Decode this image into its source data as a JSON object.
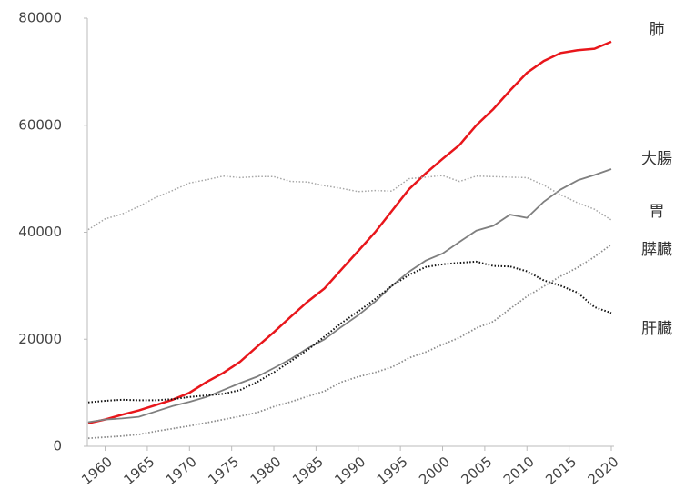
{
  "chart_data": {
    "type": "line",
    "x": [
      1958,
      1960,
      1962,
      1964,
      1966,
      1968,
      1970,
      1972,
      1974,
      1976,
      1978,
      1980,
      1982,
      1984,
      1986,
      1988,
      1990,
      1992,
      1994,
      1996,
      1998,
      2000,
      2002,
      2004,
      2006,
      2008,
      2010,
      2012,
      2014,
      2016,
      2018,
      2020
    ],
    "series": [
      {
        "name": "肺",
        "color": "#e8161b",
        "style": "solid",
        "width": 2.5,
        "values": [
          4300,
          5000,
          5900,
          6700,
          7700,
          8700,
          10000,
          12000,
          13700,
          15800,
          18600,
          21300,
          24200,
          27000,
          29500,
          33000,
          36500,
          40000,
          44000,
          48000,
          51000,
          53700,
          56300,
          60000,
          63000,
          66500,
          69800,
          72000,
          73500,
          74000,
          74300,
          75600
        ]
      },
      {
        "name": "大腸",
        "color": "#7f7f7f",
        "style": "solid",
        "width": 1.8,
        "values": [
          4500,
          5000,
          5200,
          5500,
          6500,
          7500,
          8300,
          9200,
          10500,
          11800,
          13000,
          14600,
          16300,
          18300,
          20000,
          22300,
          24500,
          27000,
          30000,
          32600,
          34700,
          36000,
          38200,
          40300,
          41200,
          43300,
          42700,
          45700,
          48000,
          49700,
          50700,
          51800
        ]
      },
      {
        "name": "胃",
        "color": "#a6a6a6",
        "style": "dotted",
        "width": 1.5,
        "values": [
          40500,
          42500,
          43400,
          44800,
          46500,
          47800,
          49200,
          49800,
          50500,
          50200,
          50400,
          50400,
          49500,
          49400,
          48700,
          48200,
          47600,
          47800,
          47700,
          50000,
          50300,
          50600,
          49500,
          50500,
          50400,
          50300,
          50200,
          48800,
          47000,
          45500,
          44300,
          42300
        ]
      },
      {
        "name": "膵臓",
        "color": "#8c8c8c",
        "style": "dotted",
        "width": 1.8,
        "values": [
          1500,
          1700,
          1900,
          2200,
          2800,
          3300,
          3800,
          4400,
          5000,
          5600,
          6300,
          7400,
          8300,
          9300,
          10300,
          12000,
          13000,
          13800,
          14800,
          16500,
          17600,
          19000,
          20300,
          22100,
          23300,
          25700,
          28000,
          29900,
          31800,
          33400,
          35400,
          37700
        ]
      },
      {
        "name": "肝臓",
        "color": "#111111",
        "style": "dotted",
        "width": 2,
        "values": [
          8200,
          8500,
          8700,
          8600,
          8600,
          8800,
          9200,
          9500,
          9800,
          10500,
          12000,
          13800,
          15900,
          18000,
          20500,
          23000,
          25200,
          27500,
          30000,
          32000,
          33500,
          34000,
          34300,
          34500,
          33700,
          33600,
          32700,
          31000,
          30000,
          28700,
          26000,
          24900
        ]
      }
    ],
    "xlim": [
      1958,
      2020
    ],
    "ylim": [
      0,
      80000
    ],
    "xticks": [
      1960,
      1965,
      1970,
      1975,
      1980,
      1985,
      1990,
      1995,
      2000,
      2005,
      2010,
      2015,
      2020
    ],
    "yticks": [
      0,
      20000,
      40000,
      60000,
      80000
    ]
  }
}
